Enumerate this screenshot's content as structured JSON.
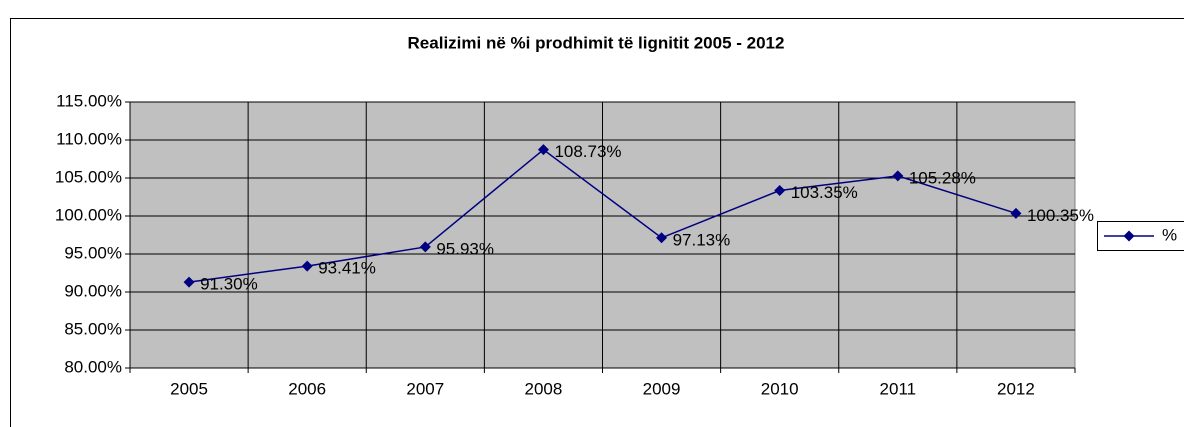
{
  "chart_data": {
    "type": "line",
    "title": "Realizimi në %i prodhimit të lignitit 2005 - 2012",
    "categories": [
      "2005",
      "2006",
      "2007",
      "2008",
      "2009",
      "2010",
      "2011",
      "2012"
    ],
    "series": [
      {
        "name": "%",
        "color": "#000080",
        "values": [
          91.3,
          93.41,
          95.93,
          108.73,
          97.13,
          103.35,
          105.28,
          100.35
        ],
        "value_labels": [
          "91.30%",
          "93.41%",
          "95.93%",
          "108.73%",
          "97.13%",
          "103.35%",
          "105.28%",
          "100.35%"
        ]
      }
    ],
    "ylim": [
      80,
      115
    ],
    "yticks": [
      {
        "value": 80,
        "label": "80.00%"
      },
      {
        "value": 85,
        "label": "85.00%"
      },
      {
        "value": 90,
        "label": "90.00%"
      },
      {
        "value": 95,
        "label": "95.00%"
      },
      {
        "value": 100,
        "label": "100.00%"
      },
      {
        "value": 105,
        "label": "105.00%"
      },
      {
        "value": 110,
        "label": "110.00%"
      },
      {
        "value": 115,
        "label": "115.00%"
      }
    ],
    "grid": true,
    "plot_background": "#c0c0c0",
    "legend_position": "right"
  }
}
